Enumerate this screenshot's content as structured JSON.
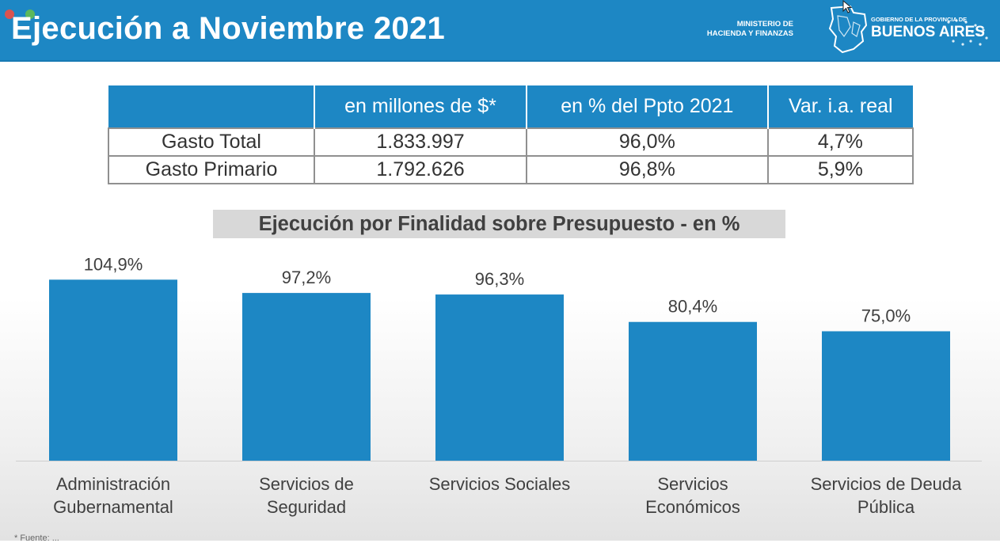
{
  "header": {
    "title": "Ejecución a Noviembre 2021",
    "ministerio_line1": "MINISTERIO DE",
    "ministerio_line2": "HACIENDA Y FINANZAS",
    "gobierno_small": "GOBIERNO DE LA PROVINCIA DE",
    "gobierno_big": "BUENOS AIRES"
  },
  "table": {
    "headers": [
      "",
      "en millones de $*",
      "en % del Ppto 2021",
      "Var. i.a. real"
    ],
    "rows": [
      [
        "Gasto Total",
        "1.833.997",
        "96,0%",
        "4,7%"
      ],
      [
        "Gasto Primario",
        "1.792.626",
        "96,8%",
        "5,9%"
      ]
    ]
  },
  "chart_data": {
    "type": "bar",
    "title": "Ejecución por Finalidad sobre Presupuesto - en %",
    "categories": [
      [
        "Administración",
        "Gubernamental"
      ],
      [
        "Servicios de",
        "Seguridad"
      ],
      [
        "Servicios Sociales"
      ],
      [
        "Servicios",
        "Económicos"
      ],
      [
        "Servicios de Deuda",
        "Pública"
      ]
    ],
    "values": [
      104.9,
      97.2,
      96.3,
      80.4,
      75.0
    ],
    "data_labels": [
      "104,9%",
      "97,2%",
      "96,3%",
      "80,4%",
      "75,0%"
    ],
    "bar_color": "#1d87c4",
    "grid": false,
    "legend": "none"
  },
  "footnote": "* Fuente: ..."
}
